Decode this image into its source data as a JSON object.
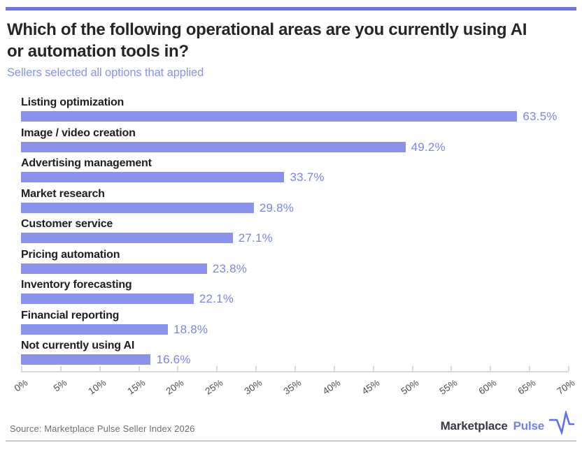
{
  "header": {
    "title_line1": "Which of the following operational areas are you currently using AI",
    "title_line2": "or automation tools in?",
    "subtitle": "Sellers selected all options that applied"
  },
  "chart_data": {
    "type": "bar",
    "orientation": "horizontal",
    "categories": [
      "Listing optimization",
      "Image / video creation",
      "Advertising management",
      "Market research",
      "Customer service",
      "Pricing automation",
      "Inventory forecasting",
      "Financial reporting",
      "Not currently using AI"
    ],
    "values": [
      63.5,
      49.2,
      33.7,
      29.8,
      27.1,
      23.8,
      22.1,
      18.8,
      16.6
    ],
    "value_labels": [
      "63.5%",
      "49.2%",
      "33.7%",
      "29.8%",
      "27.1%",
      "23.8%",
      "22.1%",
      "18.8%",
      "16.6%"
    ],
    "title": "Which of the following operational areas are you currently using AI or automation tools in?",
    "xlabel": "",
    "ylabel": "",
    "xlim": [
      0,
      70
    ],
    "xtick_values": [
      0,
      5,
      10,
      15,
      20,
      25,
      30,
      35,
      40,
      45,
      50,
      55,
      60,
      65,
      70
    ],
    "xtick_labels": [
      "0%",
      "5%",
      "10%",
      "15%",
      "20%",
      "25%",
      "30%",
      "35%",
      "40%",
      "45%",
      "50%",
      "55%",
      "60%",
      "65%",
      "70%"
    ],
    "grid": false,
    "legend": false,
    "bar_color": "#8b92ec",
    "value_label_color": "#7b84e9"
  },
  "footer": {
    "source": "Source: Marketplace Pulse Seller Index 2026",
    "logo_text_dark": "Marketplace",
    "logo_text_accent": "Pulse",
    "logo_icon": "pulse-heartbeat-icon"
  },
  "colors": {
    "accent_bar": "#8b92ec",
    "accent_text": "#7b84e9",
    "top_border": "#6d75dc",
    "title_text": "#262626",
    "axis": "#dadada",
    "tick_text": "#4d4d4d",
    "source_text": "#6f6f6f"
  }
}
